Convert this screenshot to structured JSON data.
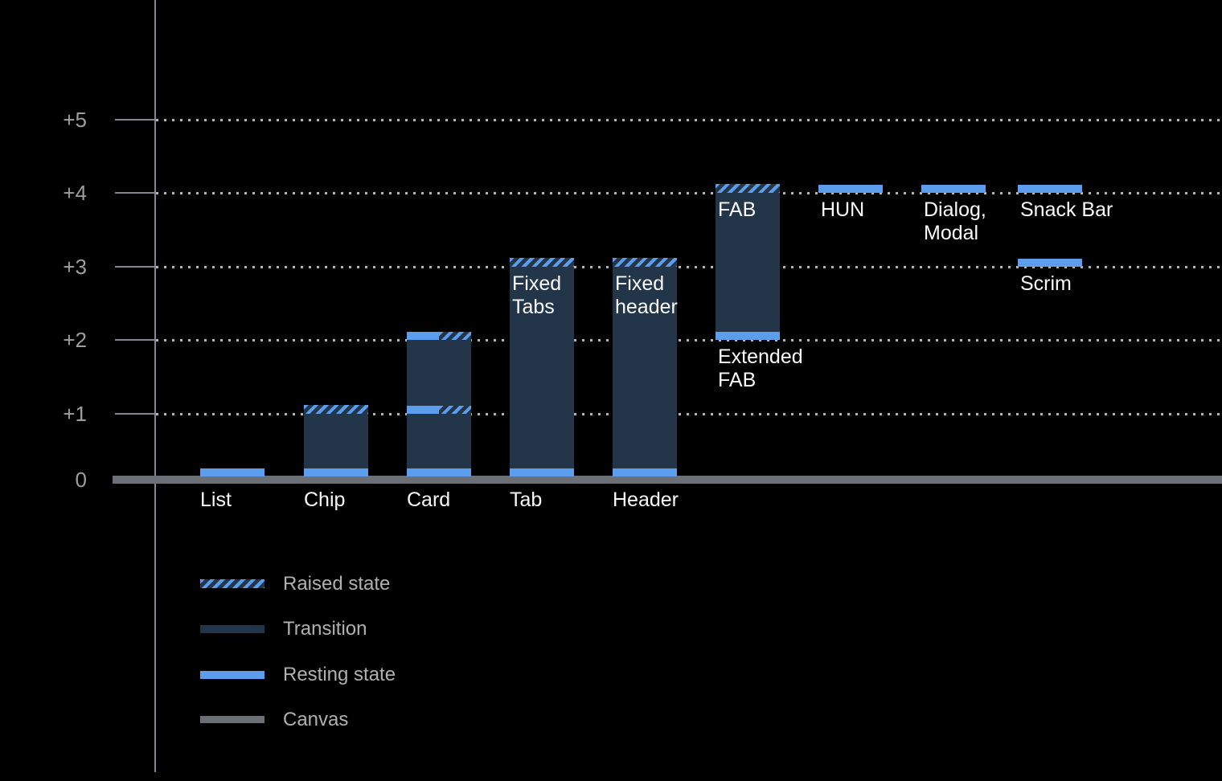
{
  "chart_data": {
    "type": "bar",
    "title": "",
    "description": "Elevation diagram of UI components (dark theme): resting and raised elevation states above a canvas baseline",
    "y_axis": {
      "tick_labels": [
        "+5",
        "+4",
        "+3",
        "+2",
        "+1",
        "0"
      ],
      "tick_values": [
        5,
        4,
        3,
        2,
        1,
        0
      ],
      "ylim": [
        0,
        5
      ],
      "grid": "dotted-horizontal",
      "baseline_label": "0"
    },
    "legend": {
      "position": "bottom-left",
      "items": [
        {
          "label": "Raised state",
          "style": "hatched"
        },
        {
          "label": "Transition",
          "style": "transition"
        },
        {
          "label": "Resting state",
          "style": "resting"
        },
        {
          "label": "Canvas",
          "style": "canvas"
        }
      ]
    },
    "components": [
      {
        "name": "List",
        "col": 0,
        "axis_label": "List",
        "bands": [
          {
            "level": 0,
            "state": "resting"
          }
        ],
        "labels": []
      },
      {
        "name": "Chip",
        "col": 1,
        "axis_label": "Chip",
        "transition": [
          0,
          1
        ],
        "bands": [
          {
            "level": 0,
            "state": "resting"
          },
          {
            "level": 1,
            "state": "raised"
          }
        ],
        "labels": []
      },
      {
        "name": "Card",
        "col": 2,
        "axis_label": "Card",
        "transition": [
          0,
          2
        ],
        "bands": [
          {
            "level": 0,
            "state": "resting"
          },
          {
            "level": 1,
            "state": "split"
          },
          {
            "level": 2,
            "state": "split"
          }
        ],
        "labels": []
      },
      {
        "name": "Tab",
        "col": 3,
        "axis_label": "Tab",
        "transition": [
          0,
          3
        ],
        "bands": [
          {
            "level": 0,
            "state": "resting"
          },
          {
            "level": 3,
            "state": "raised"
          }
        ],
        "labels": [
          {
            "text": "Fixed\nTabs",
            "at_level": 3
          }
        ]
      },
      {
        "name": "Header",
        "col": 4,
        "axis_label": "Header",
        "transition": [
          0,
          3
        ],
        "bands": [
          {
            "level": 0,
            "state": "resting"
          },
          {
            "level": 3,
            "state": "raised"
          }
        ],
        "labels": [
          {
            "text": "Fixed\nheader",
            "at_level": 3
          }
        ]
      },
      {
        "name": "FAB",
        "col": 5,
        "axis_label": "",
        "transition": [
          2,
          4
        ],
        "bands": [
          {
            "level": 2,
            "state": "resting"
          },
          {
            "level": 4,
            "state": "raised"
          }
        ],
        "labels": [
          {
            "text": "FAB",
            "at_level": 4
          },
          {
            "text": "Extended\nFAB",
            "at_level": 2
          }
        ]
      },
      {
        "name": "HUN",
        "col": 6,
        "axis_label": "",
        "bands": [
          {
            "level": 4,
            "state": "resting"
          }
        ],
        "labels": [
          {
            "text": "HUN",
            "at_level": 4
          }
        ]
      },
      {
        "name": "Dialog, Modal",
        "col": 7,
        "axis_label": "",
        "bands": [
          {
            "level": 4,
            "state": "resting"
          }
        ],
        "labels": [
          {
            "text": "Dialog,\nModal",
            "at_level": 4
          }
        ]
      },
      {
        "name": "Snack Bar",
        "col": 8,
        "axis_label": "",
        "bands": [
          {
            "level": 4,
            "state": "resting"
          }
        ],
        "labels": [
          {
            "text": "Snack Bar",
            "at_level": 4
          }
        ]
      },
      {
        "name": "Scrim",
        "col": 8,
        "axis_label": "",
        "bands": [
          {
            "level": 3,
            "state": "resting"
          }
        ],
        "labels": [
          {
            "text": "Scrim",
            "at_level": 3
          }
        ]
      }
    ],
    "colors": {
      "background": "#000000",
      "resting": "#5d9ded",
      "transition": "#223549",
      "canvas": "#6b7077",
      "grid_dots": "#b0b5ba",
      "axis": "#84888e",
      "axis_label": "#9e9e9e",
      "legend_label": "#b0b0b0",
      "bar_label": "#fafafa"
    }
  }
}
